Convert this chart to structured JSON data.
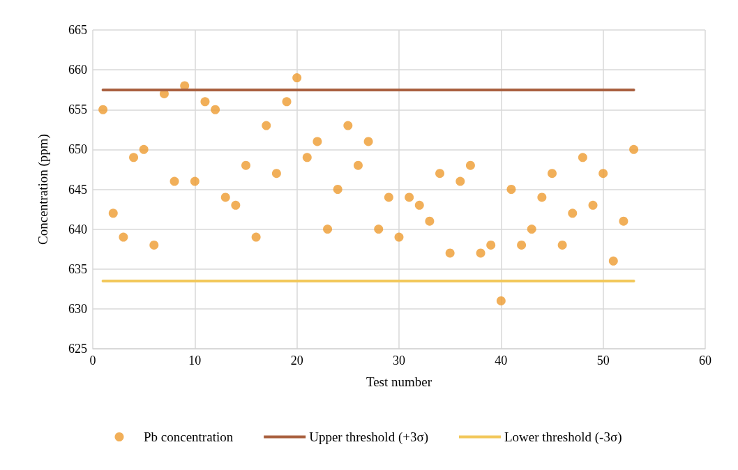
{
  "chart_data": {
    "type": "scatter",
    "xlabel": "Test number",
    "ylabel": "Concentration (ppm)",
    "x": [
      1,
      2,
      3,
      4,
      5,
      6,
      7,
      8,
      9,
      10,
      11,
      12,
      13,
      14,
      15,
      16,
      17,
      18,
      19,
      20,
      21,
      22,
      23,
      24,
      25,
      26,
      27,
      28,
      29,
      30,
      31,
      32,
      33,
      34,
      35,
      36,
      37,
      38,
      39,
      40,
      41,
      42,
      43,
      44,
      45,
      46,
      47,
      48,
      49,
      50,
      51,
      52,
      53
    ],
    "series": [
      {
        "name": "Pb concentration",
        "color": "#ed9b2f",
        "marker": "circle",
        "values": [
          655,
          642,
          639,
          649,
          650,
          638,
          657,
          646,
          658,
          646,
          656,
          655,
          644,
          643,
          648,
          639,
          653,
          647,
          656,
          659,
          649,
          651,
          640,
          645,
          653,
          648,
          651,
          640,
          644,
          639,
          644,
          643,
          641,
          647,
          637,
          646,
          648,
          637,
          638,
          631,
          645,
          638,
          640,
          644,
          647,
          638,
          642,
          649,
          643,
          647,
          636,
          641,
          650
        ]
      }
    ],
    "ref_lines": [
      {
        "axis": "y",
        "value": 657.5,
        "label": "Upper threshold (+3σ)",
        "color": "#a9603f",
        "line_style": "solid"
      },
      {
        "axis": "y",
        "value": 633.5,
        "label": "Lower threshold (-3σ)",
        "color": "#f2c85b",
        "line_style": "solid"
      }
    ],
    "xlim": [
      0,
      60
    ],
    "xticks": [
      0,
      10,
      20,
      30,
      40,
      50,
      60
    ],
    "ylim": [
      625,
      665
    ],
    "yticks": [
      625,
      630,
      635,
      640,
      645,
      650,
      655,
      660,
      665
    ],
    "grid": true,
    "legend": "bottom"
  }
}
